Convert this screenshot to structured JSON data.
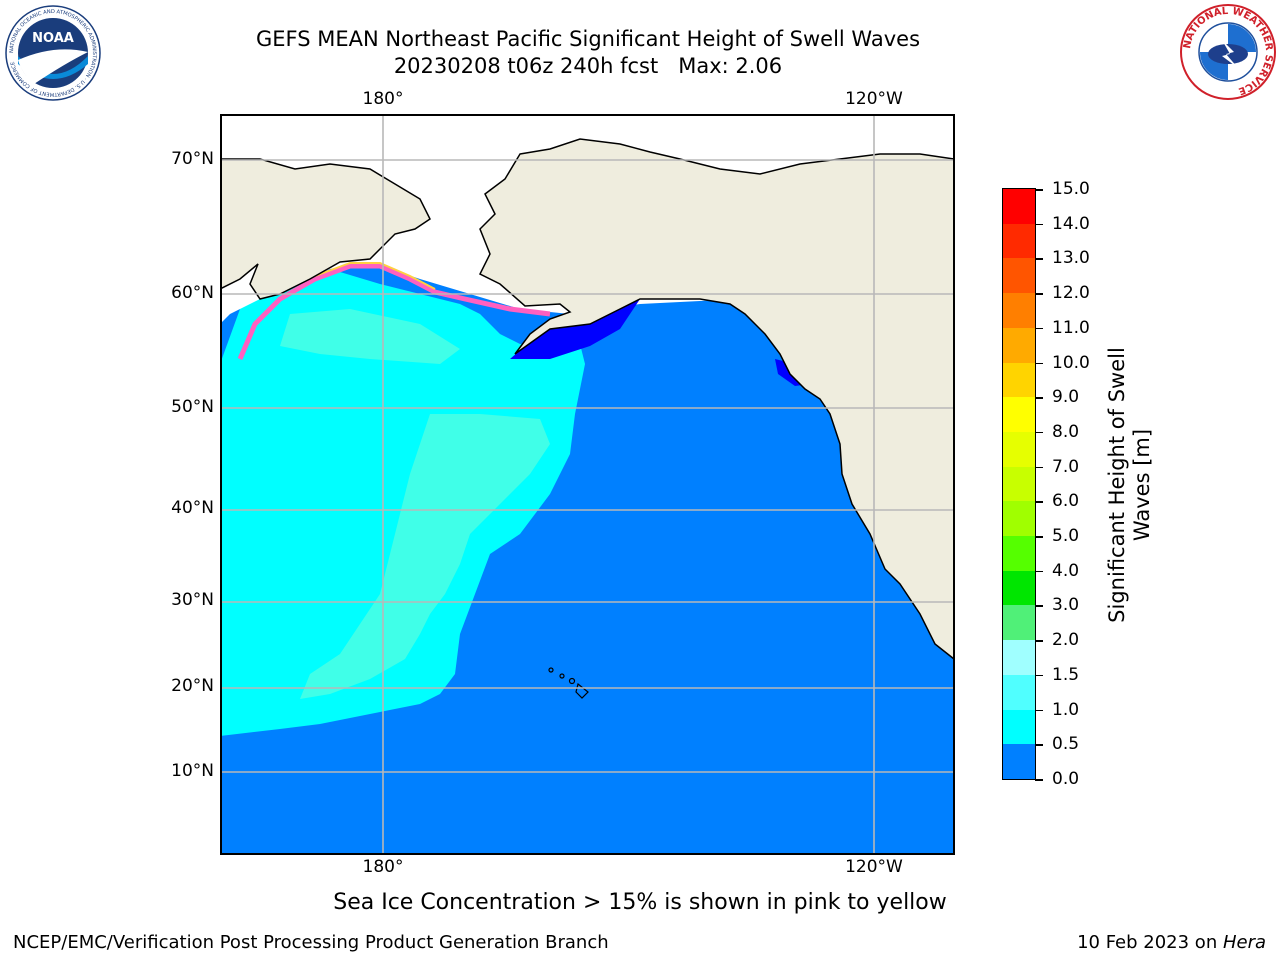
{
  "title": {
    "line1": "GEFS MEAN Northeast Pacific Significant Height of Swell Waves",
    "line2": "20230208 t06z 240h fcst   Max: 2.06"
  },
  "map": {
    "top_labels": [
      "180°",
      "120°W"
    ],
    "bottom_labels": [
      "180°",
      "120°W"
    ],
    "lat_labels": [
      "70°N",
      "60°N",
      "50°N",
      "40°N",
      "30°N",
      "20°N",
      "10°N"
    ],
    "colors": {
      "land": "#efedde",
      "ice_free": "#ffffff",
      "band_0_0_5": "#0000ff",
      "band_0_5_1_0": "#0080ff",
      "band_1_0_1_5": "#00ffff",
      "band_1_5_2_0": "#40ffe8",
      "ice_pink": "#ff60c0",
      "ice_yellow": "#ffd040"
    }
  },
  "colorbar": {
    "label": "Significant Height of Swell Waves [m]",
    "ticks": [
      "15.0",
      "14.0",
      "13.0",
      "12.0",
      "11.0",
      "10.0",
      "9.0",
      "8.0",
      "7.0",
      "6.0",
      "5.0",
      "4.0",
      "3.0",
      "2.0",
      "1.5",
      "1.0",
      "0.5",
      "0.0"
    ],
    "colors": [
      "#ff0000",
      "#ff2a00",
      "#ff5500",
      "#ff7f00",
      "#ffaa00",
      "#ffd400",
      "#ffff00",
      "#e6ff00",
      "#c8ff00",
      "#a0ff00",
      "#55ff00",
      "#00e600",
      "#50f078",
      "#a0ffff",
      "#50ffff",
      "#00ffff",
      "#0080ff",
      "#0000ff"
    ]
  },
  "footnote": "Sea Ice Concentration > 15% is shown in pink to yellow",
  "credits": {
    "left": "NCEP/EMC/Verification Post Processing Product Generation Branch",
    "right_prefix": "10 Feb 2023 on ",
    "right_host": "Hera"
  },
  "logos": {
    "noaa_text": "NOAA",
    "noaa_ring": "NATIONAL OCEANIC AND ATMOSPHERIC ADMINISTRATION · U.S. DEPARTMENT OF COMMERCE",
    "nws_ring": "NATIONAL WEATHER SERVICE"
  }
}
